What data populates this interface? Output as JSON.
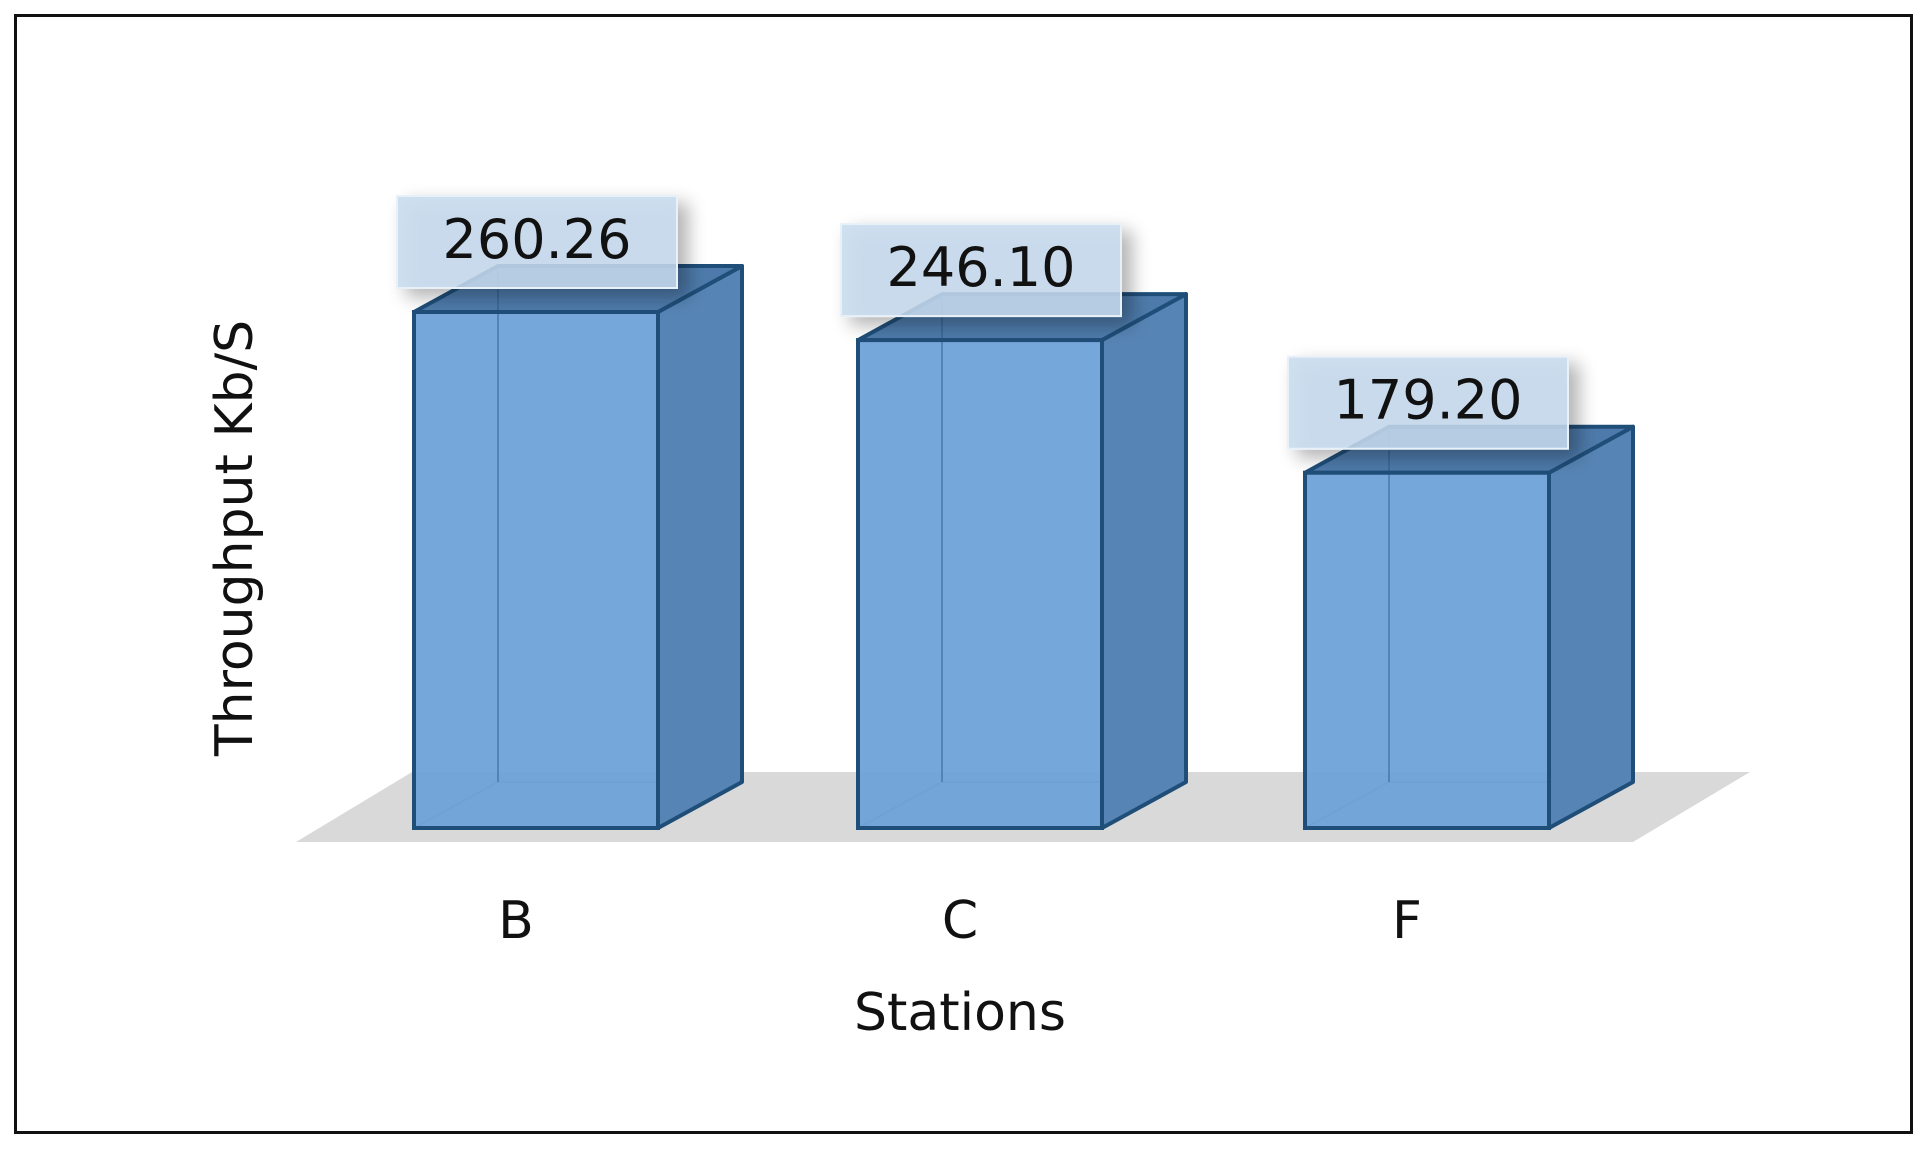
{
  "chart_data": {
    "type": "bar",
    "style": "3d",
    "title": "",
    "xlabel": "Stations",
    "ylabel": "Throughput Kb/S",
    "categories": [
      "B",
      "C",
      "F"
    ],
    "values": [
      260.26,
      246.1,
      179.2
    ],
    "value_labels": [
      "260.26",
      "246.10",
      "179.20"
    ],
    "ylim": [
      0,
      260.26
    ],
    "grid": false,
    "legend": "none",
    "colors": {
      "bar_front": "#6fa2d8",
      "bar_side": "#5684b4",
      "bar_top": "#4d7aaa",
      "bar_edge": "#1f4e79",
      "floor": "#d9d9d9",
      "label_box": "#c7daef"
    }
  }
}
